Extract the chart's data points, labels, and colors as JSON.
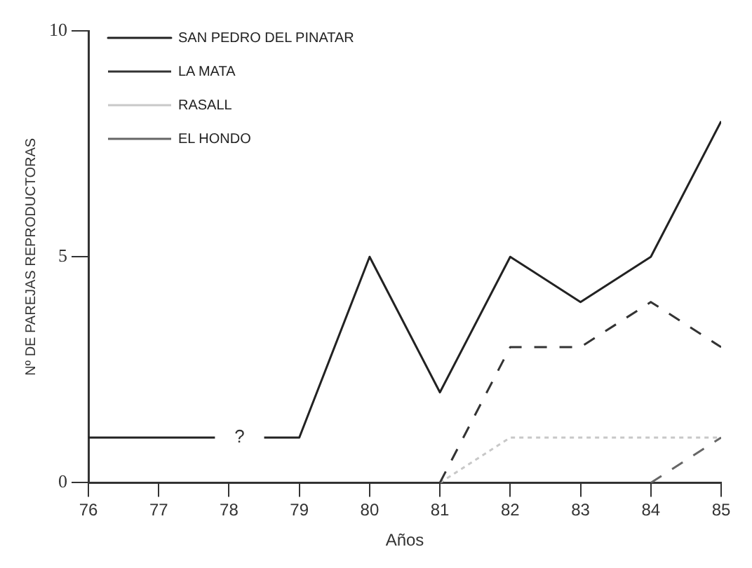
{
  "chart_data": {
    "type": "line",
    "xlabel": "Años",
    "ylabel": "Nº DE PAREJAS REPRODUCTORAS",
    "xlim": [
      76,
      85
    ],
    "xticks": [
      76,
      77,
      78,
      79,
      80,
      81,
      82,
      83,
      84,
      85
    ],
    "ylim": [
      0,
      10
    ],
    "yticks": [
      0,
      5,
      10
    ],
    "grid": false,
    "legend": "top left",
    "marker": "none",
    "annotations": [
      "?"
    ],
    "series": [
      {
        "name": "SAN PEDRO DEL PINATAR",
        "color": "#222222",
        "line_style": "solid",
        "x": [
          76,
          77.8,
          78.15,
          78.5,
          79,
          80,
          81,
          82,
          83,
          84,
          85
        ],
        "values": [
          1,
          1,
          null,
          1,
          1,
          5,
          2,
          5,
          4,
          5,
          8
        ]
      },
      {
        "name": "LA MATA",
        "color": "#333333",
        "line_style": "dashed",
        "x": [
          81,
          82,
          83,
          84,
          85
        ],
        "values": [
          0,
          3,
          3,
          4,
          3
        ]
      },
      {
        "name": "RASALL",
        "color": "#c8c8c8",
        "line_style": "dotted",
        "x": [
          81,
          82,
          83,
          84,
          85
        ],
        "values": [
          0,
          1,
          1,
          1,
          1
        ]
      },
      {
        "name": "EL HONDO",
        "color": "#666666",
        "line_style": "dashed",
        "x": [
          84,
          85
        ],
        "values": [
          0,
          1
        ]
      }
    ]
  }
}
